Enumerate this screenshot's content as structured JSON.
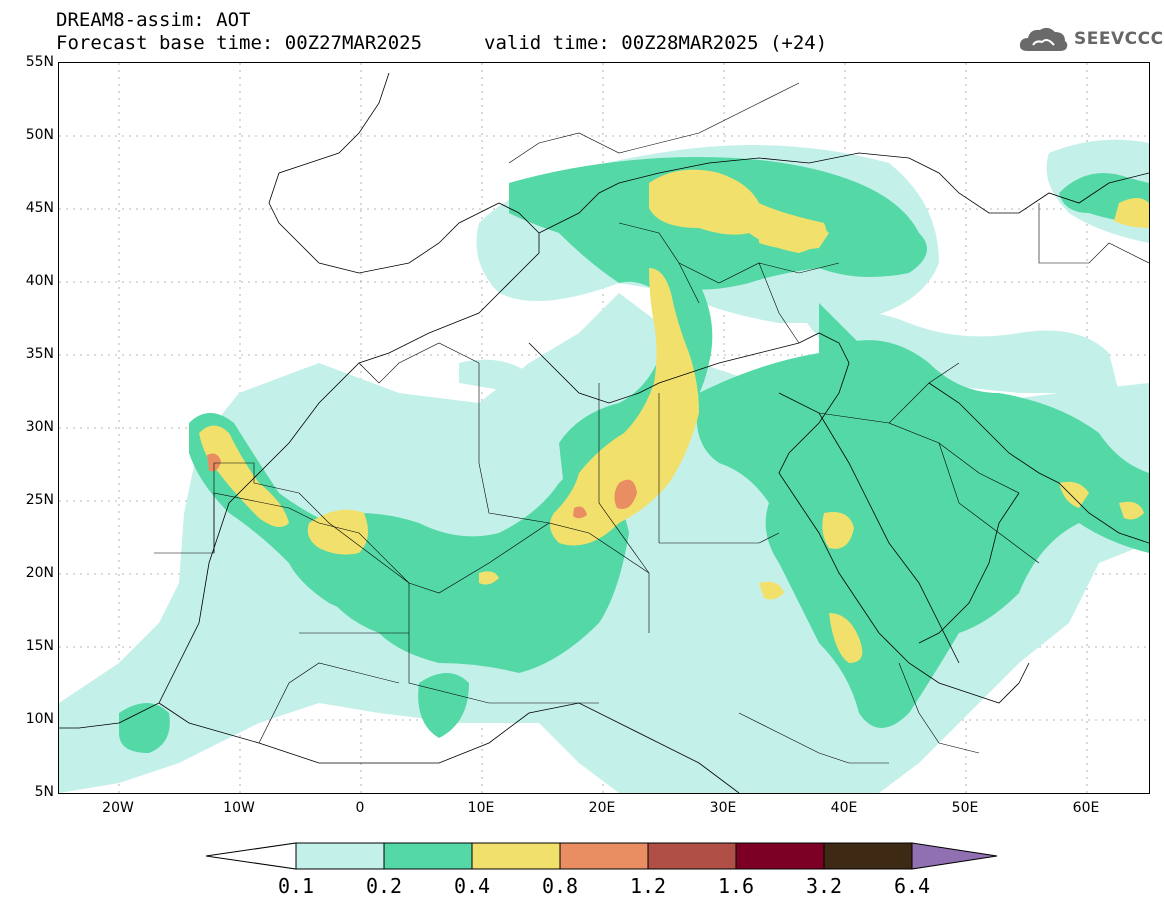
{
  "header": {
    "title_line1": "DREAM8-assim: AOT",
    "base_time": "Forecast base time: 00Z27MAR2025",
    "valid_time": "valid time: 00Z28MAR2025 (+24)"
  },
  "logo": {
    "text": "SEEVCCC",
    "icon": "cloud-icon"
  },
  "map": {
    "lat_labels": [
      "55N",
      "50N",
      "45N",
      "40N",
      "35N",
      "30N",
      "25N",
      "20N",
      "15N",
      "10N",
      "5N"
    ],
    "lon_labels": [
      "20W",
      "10W",
      "0",
      "10E",
      "20E",
      "30E",
      "40E",
      "50E",
      "60E"
    ],
    "lat_range": [
      5,
      55
    ],
    "lon_range": [
      -25,
      65
    ]
  },
  "colorbar": {
    "labels": [
      "0.1",
      "0.2",
      "0.4",
      "0.8",
      "1.2",
      "1.6",
      "3.2",
      "6.4"
    ],
    "colors": {
      "c1": "#c4f0ea",
      "c2": "#54d8a6",
      "c3": "#f1e16c",
      "c4": "#e98e62",
      "c5": "#b04f45",
      "c6": "#7c0025",
      "c7": "#3e2a14",
      "c8": "#9070b0"
    }
  }
}
